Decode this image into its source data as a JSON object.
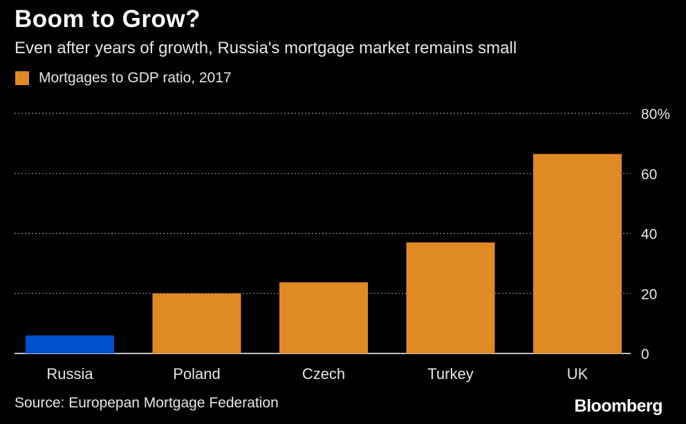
{
  "title": "Boom to Grow?",
  "subtitle": "Even after years of growth, Russia's mortgage market remains small",
  "legend_label": "Mortgages to GDP ratio, 2017",
  "source": "Source: Europepan Mortgage Federation",
  "brand": "Bloomberg",
  "colors": {
    "bar": "#e08a25",
    "highlight": "#0050cc",
    "grid": "#8c8c8c",
    "axis": "#ffffff",
    "text": "#e6e6e6"
  },
  "chart_data": {
    "type": "bar",
    "categories": [
      "Russia",
      "Poland",
      "Czech",
      "Turkey",
      "UK"
    ],
    "values": [
      6,
      20,
      23.7,
      37,
      66.5
    ],
    "highlight_category": "Russia",
    "series": [
      {
        "name": "Mortgages to GDP ratio, 2017",
        "values": [
          6,
          20,
          23.7,
          37,
          66.5
        ]
      }
    ],
    "ylim": [
      0,
      80
    ],
    "yticks": [
      {
        "value": 80,
        "label": "80%"
      },
      {
        "value": 60,
        "label": "60"
      },
      {
        "value": 40,
        "label": "40"
      },
      {
        "value": 20,
        "label": "20"
      },
      {
        "value": 0,
        "label": "0"
      }
    ],
    "grid": true,
    "y_axis_position": "right",
    "legend_position": "top-left"
  }
}
